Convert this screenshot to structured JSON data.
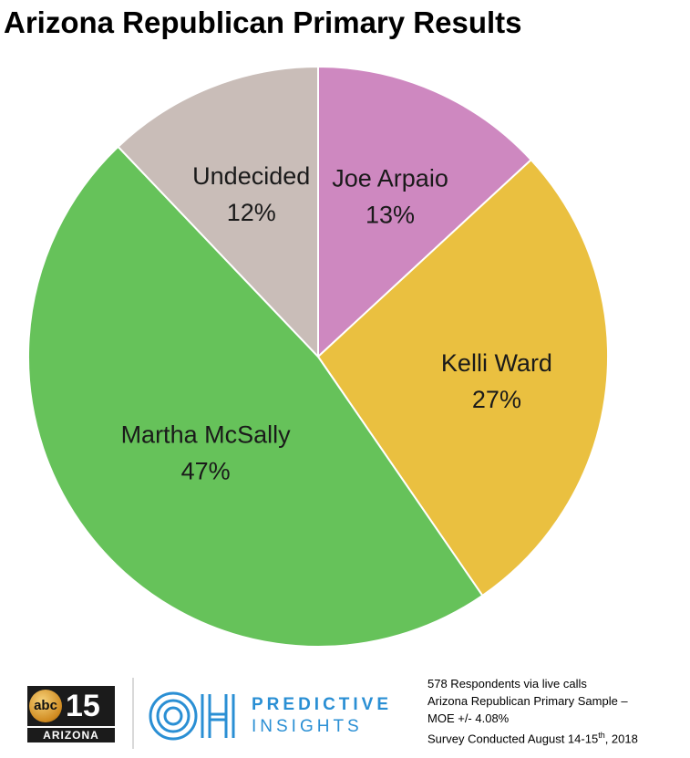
{
  "chart_data": {
    "type": "pie",
    "title": "Arizona Republican Primary Results",
    "slices": [
      {
        "label": "Joe Arpaio",
        "value": 13,
        "display": "13%",
        "color": "#ce88c0"
      },
      {
        "label": "Kelli Ward",
        "value": 27,
        "display": "27%",
        "color": "#eac040"
      },
      {
        "label": "Martha McSally",
        "value": 47,
        "display": "47%",
        "color": "#66c25a"
      },
      {
        "label": "Undecided",
        "value": 12,
        "display": "12%",
        "color": "#c9bdb8"
      }
    ],
    "start_angle_deg": 0,
    "direction": "clockwise",
    "separator_color": "#ffffff"
  },
  "footer": {
    "abc_logo": {
      "badge": "abc",
      "number": "15",
      "region": "ARIZONA"
    },
    "predictive_insights": {
      "monogram": "OH",
      "line1": "PREDICTIVE",
      "line2": "INSIGHTS",
      "color": "#2a8fd4"
    },
    "notes": {
      "line1": "578 Respondents via live calls",
      "line2": "Arizona Republican Primary Sample –",
      "line3": "MOE +/- 4.08%",
      "line4_prefix": "Survey Conducted August 14-15",
      "line4_sup": "th",
      "line4_suffix": ", 2018"
    }
  }
}
